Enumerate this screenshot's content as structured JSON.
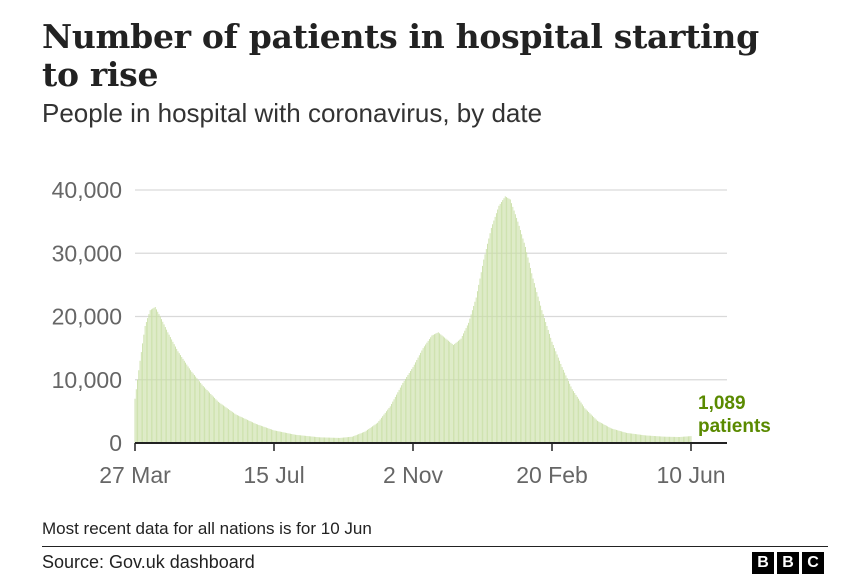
{
  "title": "Number of patients in hospital starting to rise",
  "subtitle": "People in hospital with coronavirus, by date",
  "note": "Most recent data for all nations is for 10 Jun",
  "source": "Source: Gov.uk dashboard",
  "logo_letters": [
    "B",
    "B",
    "C"
  ],
  "colors": {
    "bars": "#c9dfa6",
    "annotation": "#5a8a00",
    "grid": "#d9d9d9",
    "axis": "#222222"
  },
  "chart_data": {
    "type": "bar",
    "title": "Number of patients in hospital starting to rise",
    "subtitle": "People in hospital with coronavirus, by date",
    "xlabel": "",
    "ylabel": "",
    "ylim": [
      0,
      40000
    ],
    "yticks": [
      0,
      10000,
      20000,
      30000,
      40000
    ],
    "ytick_labels": [
      "0",
      "10,000",
      "20,000",
      "30,000",
      "40,000"
    ],
    "x_start": "2020-03-27",
    "x_end": "2021-06-10",
    "xticks": [
      {
        "date": "2020-03-27",
        "label": "27 Mar"
      },
      {
        "date": "2020-07-15",
        "label": "15 Jul"
      },
      {
        "date": "2020-11-02",
        "label": "2 Nov"
      },
      {
        "date": "2021-02-20",
        "label": "20 Feb"
      },
      {
        "date": "2021-06-10",
        "label": "10 Jun"
      }
    ],
    "grid": true,
    "series_points": [
      [
        "2020-03-27",
        7000
      ],
      [
        "2020-03-31",
        13000
      ],
      [
        "2020-04-04",
        18500
      ],
      [
        "2020-04-08",
        21000
      ],
      [
        "2020-04-12",
        21500
      ],
      [
        "2020-04-16",
        20000
      ],
      [
        "2020-04-22",
        17500
      ],
      [
        "2020-04-30",
        14500
      ],
      [
        "2020-05-10",
        11500
      ],
      [
        "2020-05-20",
        9000
      ],
      [
        "2020-06-01",
        6500
      ],
      [
        "2020-06-15",
        4500
      ],
      [
        "2020-07-01",
        3000
      ],
      [
        "2020-07-15",
        2000
      ],
      [
        "2020-08-01",
        1300
      ],
      [
        "2020-08-20",
        900
      ],
      [
        "2020-09-05",
        800
      ],
      [
        "2020-09-15",
        1000
      ],
      [
        "2020-09-25",
        1800
      ],
      [
        "2020-10-05",
        3200
      ],
      [
        "2020-10-15",
        5800
      ],
      [
        "2020-10-25",
        9500
      ],
      [
        "2020-11-02",
        12000
      ],
      [
        "2020-11-10",
        15000
      ],
      [
        "2020-11-17",
        17000
      ],
      [
        "2020-11-22",
        17500
      ],
      [
        "2020-11-28",
        16500
      ],
      [
        "2020-12-04",
        15500
      ],
      [
        "2020-12-10",
        16500
      ],
      [
        "2020-12-16",
        19000
      ],
      [
        "2020-12-22",
        23000
      ],
      [
        "2020-12-28",
        29000
      ],
      [
        "2021-01-03",
        34000
      ],
      [
        "2021-01-09",
        37500
      ],
      [
        "2021-01-14",
        39000
      ],
      [
        "2021-01-18",
        38500
      ],
      [
        "2021-01-24",
        35000
      ],
      [
        "2021-01-30",
        31000
      ],
      [
        "2021-02-05",
        26000
      ],
      [
        "2021-02-12",
        21000
      ],
      [
        "2021-02-20",
        16000
      ],
      [
        "2021-02-28",
        12000
      ],
      [
        "2021-03-08",
        8500
      ],
      [
        "2021-03-18",
        5500
      ],
      [
        "2021-03-28",
        3500
      ],
      [
        "2021-04-08",
        2300
      ],
      [
        "2021-04-20",
        1600
      ],
      [
        "2021-05-05",
        1200
      ],
      [
        "2021-05-20",
        1000
      ],
      [
        "2021-06-01",
        950
      ],
      [
        "2021-06-10",
        1089
      ]
    ],
    "latest_value": 1089,
    "annotation": {
      "value": "1,089",
      "label": "patients"
    }
  }
}
